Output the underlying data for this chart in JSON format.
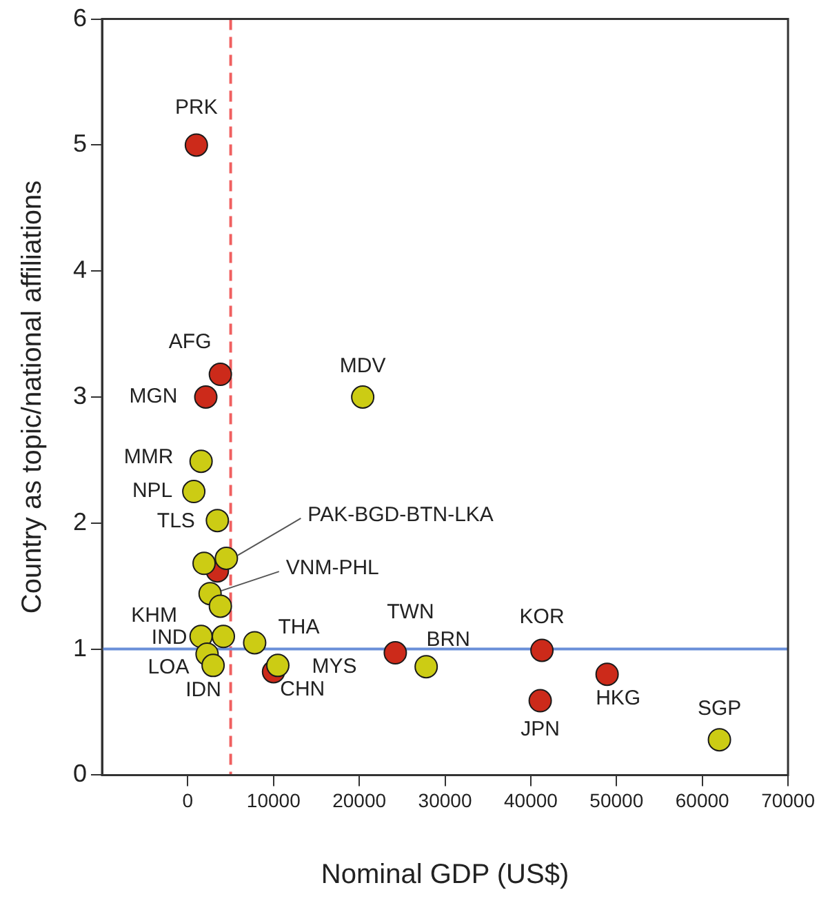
{
  "chart_data": {
    "type": "scatter",
    "xlabel": "Nominal GDP (US$)",
    "ylabel": "Country as topic/national affiliations",
    "xlim": [
      -10000,
      70000
    ],
    "xticks": [
      0,
      10000,
      20000,
      30000,
      40000,
      50000,
      60000,
      70000
    ],
    "ylim": [
      0,
      6
    ],
    "yticks": [
      0,
      1,
      2,
      3,
      4,
      5,
      6
    ],
    "grid": false,
    "legend": false,
    "marker": "circle",
    "series": [
      {
        "color": "#cccc14",
        "x": [
          20400,
          1550,
          700,
          3450,
          1900,
          4500,
          2600,
          3800,
          1550,
          4150,
          7800,
          2250,
          2950,
          10500,
          27800,
          62000
        ],
        "values": [
          3.0,
          2.49,
          2.25,
          2.02,
          1.68,
          1.72,
          1.44,
          1.34,
          1.1,
          1.1,
          1.05,
          0.96,
          0.87,
          0.87,
          0.86,
          0.28
        ]
      },
      {
        "color": "#cc2a1a",
        "x": [
          1000,
          3800,
          2100,
          3450,
          10000,
          24200,
          41300,
          41100,
          48900
        ],
        "values": [
          5.0,
          3.18,
          3.0,
          1.62,
          0.82,
          0.97,
          0.99,
          0.59,
          0.8
        ]
      }
    ],
    "ref_lines": [
      {
        "axis": "x",
        "value": 5000,
        "color": "#f06060",
        "line_style": "dashed"
      },
      {
        "axis": "y",
        "value": 1,
        "color": "#6a8fd8",
        "line_style": "solid"
      }
    ],
    "annotations": [
      {
        "text": "PRK",
        "x": 1000,
        "y": 5.0
      },
      {
        "text": "AFG",
        "x": 3800,
        "y": 3.18
      },
      {
        "text": "MGN",
        "x": 2100,
        "y": 3.0
      },
      {
        "text": "MDV",
        "x": 20400,
        "y": 3.0
      },
      {
        "text": "MMR",
        "x": 1550,
        "y": 2.49
      },
      {
        "text": "NPL",
        "x": 700,
        "y": 2.25
      },
      {
        "text": "TLS",
        "x": 3450,
        "y": 2.02
      },
      {
        "text": "PAK-BGD-BTN-LKA",
        "x": 4500,
        "y": 1.72
      },
      {
        "text": "VNM-PHL",
        "x": 2600,
        "y": 1.44
      },
      {
        "text": "KHM",
        "x": 1550,
        "y": 1.1
      },
      {
        "text": "IND",
        "x": 1550,
        "y": 1.1
      },
      {
        "text": "LOA",
        "x": 2250,
        "y": 0.96
      },
      {
        "text": "IDN",
        "x": 2950,
        "y": 0.87
      },
      {
        "text": "THA",
        "x": 7800,
        "y": 1.05
      },
      {
        "text": "MYS",
        "x": 10500,
        "y": 0.87
      },
      {
        "text": "CHN",
        "x": 10000,
        "y": 0.82
      },
      {
        "text": "TWN",
        "x": 24200,
        "y": 0.97
      },
      {
        "text": "BRN",
        "x": 27800,
        "y": 0.86
      },
      {
        "text": "KOR",
        "x": 41300,
        "y": 0.99
      },
      {
        "text": "JPN",
        "x": 41100,
        "y": 0.59
      },
      {
        "text": "HKG",
        "x": 48900,
        "y": 0.8
      },
      {
        "text": "SGP",
        "x": 62000,
        "y": 0.28
      }
    ]
  }
}
